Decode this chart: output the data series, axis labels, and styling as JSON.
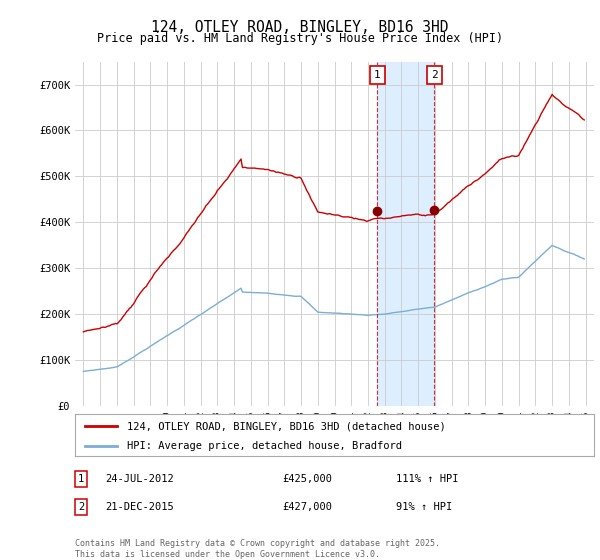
{
  "title": "124, OTLEY ROAD, BINGLEY, BD16 3HD",
  "subtitle": "Price paid vs. HM Land Registry's House Price Index (HPI)",
  "footer": "Contains HM Land Registry data © Crown copyright and database right 2025.\nThis data is licensed under the Open Government Licence v3.0.",
  "legend_line1": "124, OTLEY ROAD, BINGLEY, BD16 3HD (detached house)",
  "legend_line2": "HPI: Average price, detached house, Bradford",
  "sale1_label": "1",
  "sale2_label": "2",
  "sale1_date": "24-JUL-2012",
  "sale1_price": "£425,000",
  "sale1_hpi": "111% ↑ HPI",
  "sale2_date": "21-DEC-2015",
  "sale2_price": "£427,000",
  "sale2_hpi": "91% ↑ HPI",
  "red_color": "#cc0000",
  "blue_color": "#7aaed6",
  "shading_color": "#ddeeff",
  "grid_color": "#cccccc",
  "background_color": "#ffffff",
  "ylim": [
    0,
    750000
  ],
  "yticks": [
    0,
    100000,
    200000,
    300000,
    400000,
    500000,
    600000,
    700000
  ],
  "xlim_start": 1994.5,
  "xlim_end": 2025.5,
  "sale1_year": 2012.56,
  "sale2_year": 2015.97,
  "sale1_price_val": 425000,
  "sale2_price_val": 427000
}
